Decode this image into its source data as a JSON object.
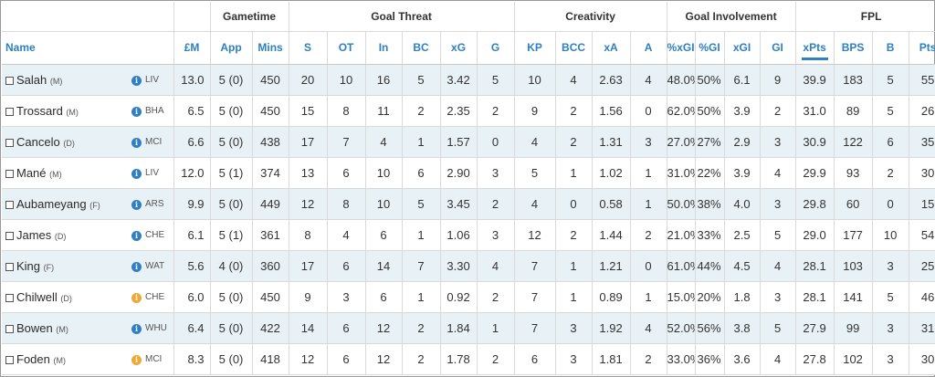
{
  "group_headers": {
    "gametime": "Gametime",
    "goal_threat": "Goal Threat",
    "creativity": "Creativity",
    "goal_involvement": "Goal Involvement",
    "fpl": "FPL"
  },
  "columns": {
    "name": "Name",
    "price": "£M",
    "app": "App",
    "mins": "Mins",
    "s": "S",
    "ot": "OT",
    "in": "In",
    "bc": "BC",
    "xg": "xG",
    "g": "G",
    "kp": "KP",
    "bcc": "BCC",
    "xa": "xA",
    "a": "A",
    "pct_xgi": "%xGI",
    "pct_gi": "%GI",
    "xgi": "xGI",
    "gi": "GI",
    "xpts": "xPts",
    "bps": "BPS",
    "b": "B",
    "pts": "Pts"
  },
  "players": [
    {
      "name": "Salah",
      "pos": "(M)",
      "icon": "blue",
      "team": "LIV",
      "price": "13.0",
      "app": "5 (0)",
      "mins": "450",
      "s": "20",
      "ot": "10",
      "in": "16",
      "bc": "5",
      "xg": "3.42",
      "g": "5",
      "kp": "10",
      "bcc": "4",
      "xa": "2.63",
      "a": "4",
      "pct_xgi": "48.0%",
      "pct_gi": "50%",
      "xgi": "6.1",
      "gi": "9",
      "xpts": "39.9",
      "bps": "183",
      "b": "5",
      "pts": "55"
    },
    {
      "name": "Trossard",
      "pos": "(M)",
      "icon": "blue",
      "team": "BHA",
      "price": "6.5",
      "app": "5 (0)",
      "mins": "450",
      "s": "15",
      "ot": "8",
      "in": "11",
      "bc": "2",
      "xg": "2.35",
      "g": "2",
      "kp": "9",
      "bcc": "2",
      "xa": "1.56",
      "a": "0",
      "pct_xgi": "62.0%",
      "pct_gi": "50%",
      "xgi": "3.9",
      "gi": "2",
      "xpts": "31.0",
      "bps": "89",
      "b": "5",
      "pts": "26"
    },
    {
      "name": "Cancelo",
      "pos": "(D)",
      "icon": "blue",
      "team": "MCI",
      "price": "6.6",
      "app": "5 (0)",
      "mins": "438",
      "s": "17",
      "ot": "7",
      "in": "4",
      "bc": "1",
      "xg": "1.57",
      "g": "0",
      "kp": "4",
      "bcc": "2",
      "xa": "1.31",
      "a": "3",
      "pct_xgi": "27.0%",
      "pct_gi": "27%",
      "xgi": "2.9",
      "gi": "3",
      "xpts": "30.9",
      "bps": "122",
      "b": "6",
      "pts": "35"
    },
    {
      "name": "Mané",
      "pos": "(M)",
      "icon": "blue",
      "team": "LIV",
      "price": "12.0",
      "app": "5 (1)",
      "mins": "374",
      "s": "13",
      "ot": "6",
      "in": "10",
      "bc": "6",
      "xg": "2.90",
      "g": "3",
      "kp": "5",
      "bcc": "1",
      "xa": "1.02",
      "a": "1",
      "pct_xgi": "31.0%",
      "pct_gi": "22%",
      "xgi": "3.9",
      "gi": "4",
      "xpts": "29.9",
      "bps": "93",
      "b": "2",
      "pts": "30"
    },
    {
      "name": "Aubameyang",
      "pos": "(F)",
      "icon": "blue",
      "team": "ARS",
      "price": "9.9",
      "app": "5 (0)",
      "mins": "449",
      "s": "12",
      "ot": "8",
      "in": "10",
      "bc": "5",
      "xg": "3.45",
      "g": "2",
      "kp": "4",
      "bcc": "0",
      "xa": "0.58",
      "a": "1",
      "pct_xgi": "50.0%",
      "pct_gi": "38%",
      "xgi": "4.0",
      "gi": "3",
      "xpts": "29.8",
      "bps": "60",
      "b": "0",
      "pts": "15"
    },
    {
      "name": "James",
      "pos": "(D)",
      "icon": "blue",
      "team": "CHE",
      "price": "6.1",
      "app": "5 (1)",
      "mins": "361",
      "s": "8",
      "ot": "4",
      "in": "6",
      "bc": "1",
      "xg": "1.06",
      "g": "3",
      "kp": "12",
      "bcc": "2",
      "xa": "1.44",
      "a": "2",
      "pct_xgi": "21.0%",
      "pct_gi": "33%",
      "xgi": "2.5",
      "gi": "5",
      "xpts": "29.0",
      "bps": "177",
      "b": "10",
      "pts": "54"
    },
    {
      "name": "King",
      "pos": "(F)",
      "icon": "blue",
      "team": "WAT",
      "price": "5.6",
      "app": "4 (0)",
      "mins": "360",
      "s": "17",
      "ot": "6",
      "in": "14",
      "bc": "7",
      "xg": "3.30",
      "g": "4",
      "kp": "7",
      "bcc": "1",
      "xa": "1.21",
      "a": "0",
      "pct_xgi": "61.0%",
      "pct_gi": "44%",
      "xgi": "4.5",
      "gi": "4",
      "xpts": "28.1",
      "bps": "103",
      "b": "3",
      "pts": "25"
    },
    {
      "name": "Chilwell",
      "pos": "(D)",
      "icon": "orange",
      "team": "CHE",
      "price": "6.0",
      "app": "5 (0)",
      "mins": "450",
      "s": "9",
      "ot": "3",
      "in": "6",
      "bc": "1",
      "xg": "0.92",
      "g": "2",
      "kp": "7",
      "bcc": "1",
      "xa": "0.89",
      "a": "1",
      "pct_xgi": "15.0%",
      "pct_gi": "20%",
      "xgi": "1.8",
      "gi": "3",
      "xpts": "28.1",
      "bps": "141",
      "b": "5",
      "pts": "46"
    },
    {
      "name": "Bowen",
      "pos": "(M)",
      "icon": "blue",
      "team": "WHU",
      "price": "6.4",
      "app": "5 (0)",
      "mins": "422",
      "s": "14",
      "ot": "6",
      "in": "12",
      "bc": "2",
      "xg": "1.84",
      "g": "1",
      "kp": "7",
      "bcc": "3",
      "xa": "1.92",
      "a": "4",
      "pct_xgi": "52.0%",
      "pct_gi": "56%",
      "xgi": "3.8",
      "gi": "5",
      "xpts": "27.9",
      "bps": "99",
      "b": "3",
      "pts": "31"
    },
    {
      "name": "Foden",
      "pos": "(M)",
      "icon": "orange",
      "team": "MCI",
      "price": "8.3",
      "app": "5 (0)",
      "mins": "418",
      "s": "12",
      "ot": "6",
      "in": "12",
      "bc": "2",
      "xg": "1.78",
      "g": "2",
      "kp": "6",
      "bcc": "3",
      "xa": "1.81",
      "a": "2",
      "pct_xgi": "33.0%",
      "pct_gi": "36%",
      "xgi": "3.6",
      "gi": "4",
      "xpts": "27.8",
      "bps": "102",
      "b": "3",
      "pts": "30"
    }
  ],
  "sorted_column": "xpts",
  "colors": {
    "header_blue": "#2f7fc1",
    "row_stripe": "#e8f1f6",
    "info_blue": "#2f7fc1",
    "info_orange": "#f0a830"
  }
}
